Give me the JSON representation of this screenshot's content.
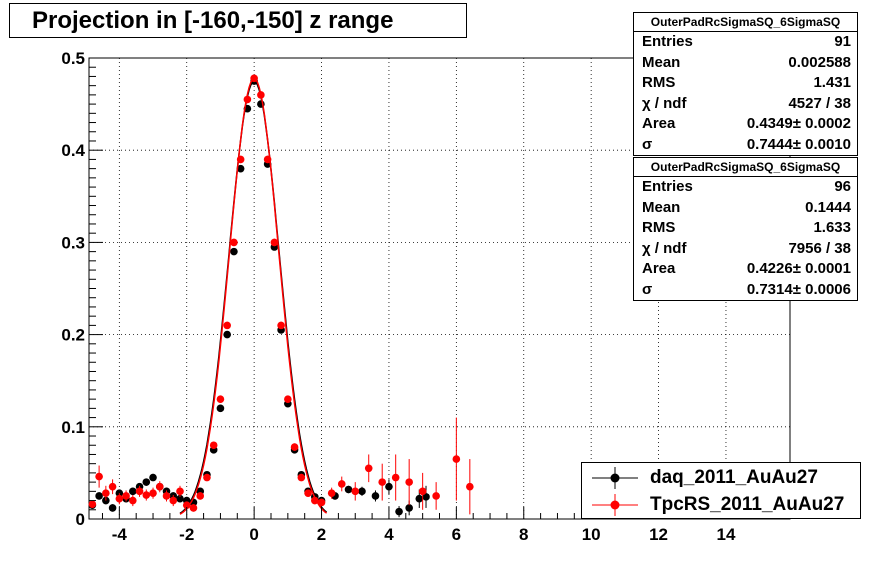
{
  "title": "Projection in [-160,-150] z range",
  "colors": {
    "series1": "#000000",
    "series2": "#ff0000",
    "grid": "#000000"
  },
  "stats_boxes": [
    {
      "header": "OuterPadRcSigmaSQ_6SigmaSQ",
      "rows": [
        {
          "label": "Entries",
          "value": "91"
        },
        {
          "label": "Mean",
          "value": "0.002588"
        },
        {
          "label": "RMS",
          "value": "1.431"
        },
        {
          "label": "χ  / ndf",
          "value": "4527 / 38"
        },
        {
          "label": "Area",
          "value": "0.4349± 0.0002"
        },
        {
          "label": "σ",
          "value": "0.7444± 0.0010"
        }
      ]
    },
    {
      "header": "OuterPadRcSigmaSQ_6SigmaSQ",
      "rows": [
        {
          "label": "Entries",
          "value": "96"
        },
        {
          "label": "Mean",
          "value": "0.1444"
        },
        {
          "label": "RMS",
          "value": "1.633"
        },
        {
          "label": "χ  / ndf",
          "value": "7956 / 38"
        },
        {
          "label": "Area",
          "value": "0.4226± 0.0001"
        },
        {
          "label": "σ",
          "value": "0.7314± 0.0006"
        }
      ]
    }
  ],
  "legend": [
    {
      "label": "daq_2011_AuAu27"
    },
    {
      "label": "TpcRS_2011_AuAu27"
    }
  ],
  "chart_data": {
    "type": "scatter",
    "title": "Projection in [-160,-150] z range",
    "xlim": [
      -4.9,
      15.9
    ],
    "ylim": [
      0,
      0.5
    ],
    "x_ticks": [
      -4,
      -2,
      0,
      2,
      4,
      6,
      8,
      10,
      12,
      14
    ],
    "x_tick_labels": [
      "-4",
      "-2",
      "0",
      "2",
      "4",
      "6",
      "8",
      "10",
      "12",
      "14"
    ],
    "y_ticks": [
      0,
      0.1,
      0.2,
      0.3,
      0.4,
      0.5
    ],
    "y_tick_labels": [
      "0",
      "0.1",
      "0.2",
      "0.3",
      "0.4",
      "0.5"
    ],
    "grid": true,
    "legend_position": "bottom-right",
    "series": [
      {
        "name": "daq_2011_AuAu27",
        "fit_sigma": 0.7444,
        "points": [
          [
            -4.8,
            0.015,
            0.003
          ],
          [
            -4.6,
            0.025,
            0.004
          ],
          [
            -4.4,
            0.02,
            0.004
          ],
          [
            -4.2,
            0.012,
            0.004
          ],
          [
            -4.0,
            0.028,
            0.004
          ],
          [
            -3.8,
            0.022,
            0.004
          ],
          [
            -3.6,
            0.03,
            0.004
          ],
          [
            -3.4,
            0.035,
            0.004
          ],
          [
            -3.2,
            0.04,
            0.004
          ],
          [
            -3.0,
            0.045,
            0.004
          ],
          [
            -2.8,
            0.035,
            0.004
          ],
          [
            -2.6,
            0.03,
            0.004
          ],
          [
            -2.4,
            0.025,
            0.004
          ],
          [
            -2.2,
            0.022,
            0.004
          ],
          [
            -2.0,
            0.02,
            0.004
          ],
          [
            -1.8,
            0.018,
            0.003
          ],
          [
            -1.6,
            0.03,
            0.003
          ],
          [
            -1.4,
            0.048,
            0.003
          ],
          [
            -1.2,
            0.075,
            0.003
          ],
          [
            -1.0,
            0.12,
            0.003
          ],
          [
            -0.8,
            0.2,
            0.003
          ],
          [
            -0.6,
            0.29,
            0.003
          ],
          [
            -0.4,
            0.38,
            0.003
          ],
          [
            -0.2,
            0.445,
            0.003
          ],
          [
            0.0,
            0.475,
            0.003
          ],
          [
            0.2,
            0.45,
            0.003
          ],
          [
            0.4,
            0.385,
            0.003
          ],
          [
            0.6,
            0.295,
            0.003
          ],
          [
            0.8,
            0.205,
            0.003
          ],
          [
            1.0,
            0.125,
            0.003
          ],
          [
            1.2,
            0.075,
            0.003
          ],
          [
            1.4,
            0.048,
            0.003
          ],
          [
            1.6,
            0.03,
            0.003
          ],
          [
            1.8,
            0.024,
            0.003
          ],
          [
            2.0,
            0.02,
            0.003
          ],
          [
            2.4,
            0.025,
            0.004
          ],
          [
            2.8,
            0.032,
            0.004
          ],
          [
            3.2,
            0.03,
            0.005
          ],
          [
            3.6,
            0.025,
            0.006
          ],
          [
            4.0,
            0.035,
            0.008
          ],
          [
            4.3,
            0.008,
            0.006
          ],
          [
            4.6,
            0.012,
            0.008
          ],
          [
            4.9,
            0.022,
            0.01
          ],
          [
            5.1,
            0.024,
            0.012
          ]
        ]
      },
      {
        "name": "TpcRS_2011_AuAu27",
        "fit_sigma": 0.7314,
        "points": [
          [
            -4.8,
            0.016,
            0.004
          ],
          [
            -4.6,
            0.046,
            0.012
          ],
          [
            -4.4,
            0.028,
            0.008
          ],
          [
            -4.2,
            0.035,
            0.008
          ],
          [
            -4.0,
            0.022,
            0.006
          ],
          [
            -3.8,
            0.025,
            0.006
          ],
          [
            -3.6,
            0.02,
            0.006
          ],
          [
            -3.4,
            0.03,
            0.006
          ],
          [
            -3.2,
            0.026,
            0.006
          ],
          [
            -3.0,
            0.028,
            0.006
          ],
          [
            -2.8,
            0.035,
            0.006
          ],
          [
            -2.6,
            0.025,
            0.006
          ],
          [
            -2.4,
            0.02,
            0.006
          ],
          [
            -2.2,
            0.03,
            0.006
          ],
          [
            -2.0,
            0.015,
            0.004
          ],
          [
            -1.8,
            0.012,
            0.004
          ],
          [
            -1.6,
            0.025,
            0.004
          ],
          [
            -1.4,
            0.045,
            0.004
          ],
          [
            -1.2,
            0.08,
            0.004
          ],
          [
            -1.0,
            0.13,
            0.004
          ],
          [
            -0.8,
            0.21,
            0.004
          ],
          [
            -0.6,
            0.3,
            0.004
          ],
          [
            -0.4,
            0.39,
            0.004
          ],
          [
            -0.2,
            0.455,
            0.004
          ],
          [
            0.0,
            0.478,
            0.004
          ],
          [
            0.2,
            0.46,
            0.004
          ],
          [
            0.4,
            0.39,
            0.004
          ],
          [
            0.6,
            0.3,
            0.004
          ],
          [
            0.8,
            0.21,
            0.004
          ],
          [
            1.0,
            0.13,
            0.004
          ],
          [
            1.2,
            0.078,
            0.004
          ],
          [
            1.4,
            0.045,
            0.004
          ],
          [
            1.6,
            0.028,
            0.004
          ],
          [
            1.8,
            0.02,
            0.004
          ],
          [
            2.0,
            0.018,
            0.004
          ],
          [
            2.3,
            0.028,
            0.006
          ],
          [
            2.6,
            0.038,
            0.008
          ],
          [
            3.0,
            0.03,
            0.01
          ],
          [
            3.4,
            0.055,
            0.015
          ],
          [
            3.8,
            0.04,
            0.02
          ],
          [
            4.2,
            0.045,
            0.025
          ],
          [
            4.6,
            0.04,
            0.025
          ],
          [
            5.0,
            0.03,
            0.02
          ],
          [
            5.4,
            0.025,
            0.015
          ],
          [
            6.0,
            0.065,
            0.045
          ],
          [
            6.4,
            0.035,
            0.03
          ]
        ]
      }
    ]
  }
}
